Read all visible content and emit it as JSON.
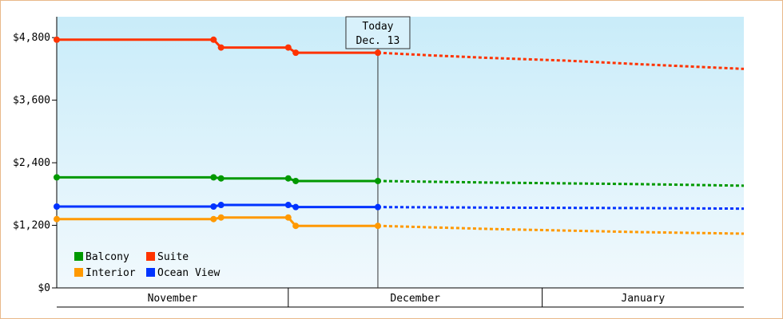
{
  "chart_data": {
    "type": "line",
    "title": "",
    "xlabel": "",
    "ylabel": "",
    "ylim": [
      0,
      5200
    ],
    "yticks": [
      0,
      1200,
      2400,
      3600,
      4800
    ],
    "ytick_labels": [
      "$0",
      "$1,200",
      "$2,400",
      "$3,600",
      "$4,800"
    ],
    "x_domain": [
      "2024-10-31",
      "2025-01-31"
    ],
    "months": [
      {
        "label": "November",
        "start": "2024-10-31",
        "end": "2024-12-01"
      },
      {
        "label": "December",
        "start": "2024-12-01",
        "end": "2025-01-04"
      },
      {
        "label": "January",
        "start": "2025-01-04",
        "end": "2025-01-31"
      }
    ],
    "today": {
      "line1": "Today",
      "line2": "Dec. 13",
      "date": "2024-12-13"
    },
    "grid": false,
    "legend": "bottom-left",
    "series": [
      {
        "name": "Suite",
        "color": "#ff3300",
        "actual": [
          [
            "2024-10-31",
            4760
          ],
          [
            "2024-11-21",
            4760
          ],
          [
            "2024-11-22",
            4610
          ],
          [
            "2024-12-01",
            4610
          ],
          [
            "2024-12-02",
            4510
          ],
          [
            "2024-12-13",
            4510
          ]
        ],
        "forecast": [
          [
            "2024-12-13",
            4510
          ],
          [
            "2024-12-20",
            4460
          ],
          [
            "2024-12-28",
            4410
          ],
          [
            "2025-01-07",
            4360
          ],
          [
            "2025-01-17",
            4290
          ],
          [
            "2025-01-31",
            4200
          ]
        ]
      },
      {
        "name": "Balcony",
        "color": "#009900",
        "actual": [
          [
            "2024-10-31",
            2120
          ],
          [
            "2024-11-21",
            2120
          ],
          [
            "2024-11-22",
            2100
          ],
          [
            "2024-12-01",
            2100
          ],
          [
            "2024-12-02",
            2050
          ],
          [
            "2024-12-13",
            2050
          ]
        ],
        "forecast": [
          [
            "2024-12-13",
            2050
          ],
          [
            "2024-12-28",
            2020
          ],
          [
            "2025-01-17",
            1990
          ],
          [
            "2025-01-31",
            1960
          ]
        ]
      },
      {
        "name": "Ocean View",
        "color": "#0033ff",
        "actual": [
          [
            "2024-10-31",
            1560
          ],
          [
            "2024-11-21",
            1560
          ],
          [
            "2024-11-22",
            1590
          ],
          [
            "2024-12-01",
            1590
          ],
          [
            "2024-12-02",
            1550
          ],
          [
            "2024-12-13",
            1550
          ]
        ],
        "forecast": [
          [
            "2024-12-13",
            1550
          ],
          [
            "2024-12-28",
            1540
          ],
          [
            "2025-01-17",
            1530
          ],
          [
            "2025-01-31",
            1520
          ]
        ]
      },
      {
        "name": "Interior",
        "color": "#ff9900",
        "actual": [
          [
            "2024-10-31",
            1320
          ],
          [
            "2024-11-21",
            1320
          ],
          [
            "2024-11-22",
            1350
          ],
          [
            "2024-12-01",
            1350
          ],
          [
            "2024-12-02",
            1190
          ],
          [
            "2024-12-13",
            1190
          ]
        ],
        "forecast": [
          [
            "2024-12-13",
            1190
          ],
          [
            "2024-12-28",
            1130
          ],
          [
            "2025-01-17",
            1070
          ],
          [
            "2025-01-31",
            1040
          ]
        ]
      }
    ],
    "legend_order": [
      "Balcony",
      "Suite",
      "Interior",
      "Ocean View"
    ]
  }
}
